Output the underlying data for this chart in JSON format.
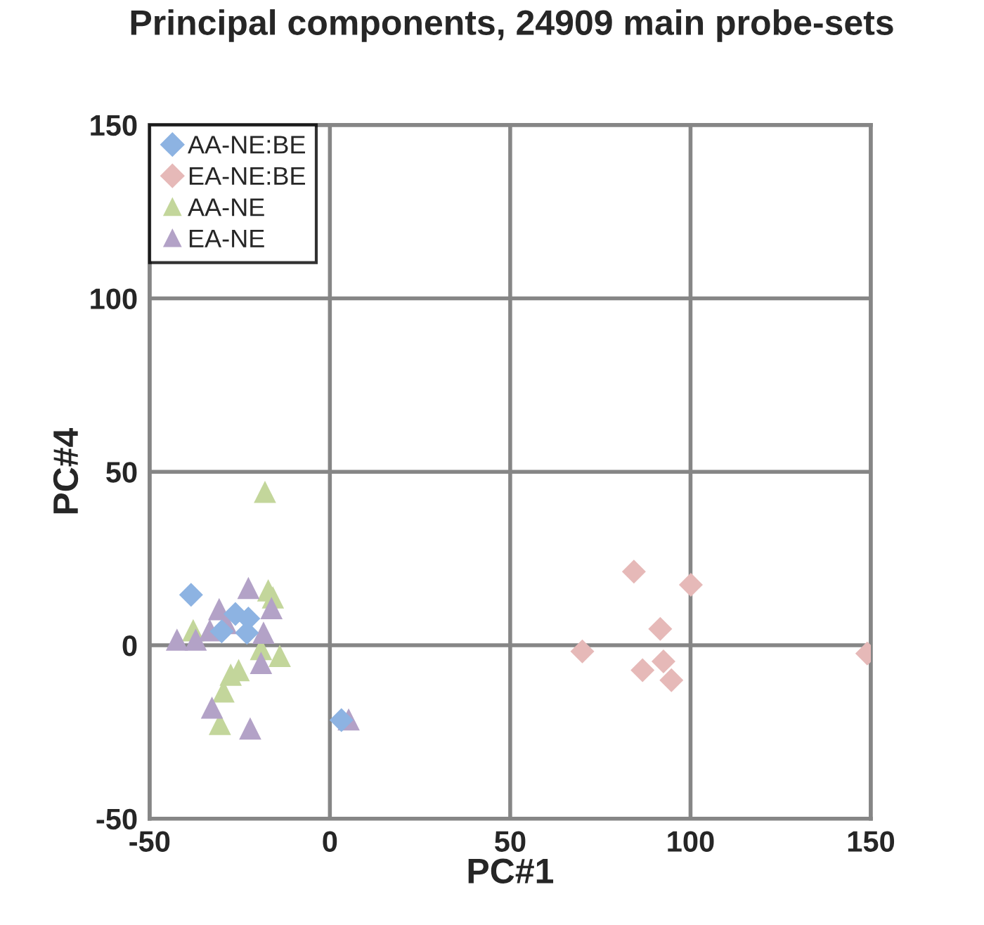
{
  "chart_data": {
    "type": "scatter",
    "title": "Principal components, 24909 main probe-sets",
    "xlabel": "PC#1",
    "ylabel": "PC#4",
    "xlim": [
      -50,
      150
    ],
    "xticks": [
      -50,
      0,
      50,
      100,
      150
    ],
    "ylim": [
      -50,
      150
    ],
    "yticks": [
      -50,
      0,
      50,
      100,
      150
    ],
    "grid": true,
    "legend": "top left",
    "series": [
      {
        "name": "AA-NE:BE",
        "color": "#8db3e2",
        "marker": "diamond",
        "x": [
          -38.5,
          -26.2,
          -22.6,
          -23,
          -30,
          3.2
        ],
        "values": [
          14.5,
          9,
          7.7,
          3.6,
          4,
          -21.6
        ]
      },
      {
        "name": "EA-NE:BE",
        "color": "#e6b9b8",
        "marker": "diamond",
        "x": [
          84.3,
          100.1,
          91.6,
          70,
          92.5,
          86.7,
          94.7,
          149
        ],
        "values": [
          21.2,
          17.4,
          4.7,
          -1.8,
          -4.7,
          -7.2,
          -10.1,
          -2.4
        ]
      },
      {
        "name": "AA-NE",
        "color": "#c3d69b",
        "marker": "triangle",
        "x": [
          -18,
          -17.1,
          -15.8,
          -37.9,
          -19.1,
          -13.9,
          -25.3,
          -27.5,
          -29.5,
          -30.5
        ],
        "values": [
          44.2,
          15.8,
          13.8,
          4.3,
          -1.1,
          -3.1,
          -7.2,
          -8.5,
          -13.3,
          -22.7
        ]
      },
      {
        "name": "EA-NE",
        "color": "#b3a2c7",
        "marker": "triangle",
        "x": [
          -22.6,
          -30.7,
          -16.2,
          -28.8,
          -33.3,
          -18.4,
          -42.4,
          -37.2,
          -19.1,
          -32.7,
          -22.1,
          5.2
        ],
        "values": [
          16.5,
          10.4,
          10.7,
          6.4,
          4.3,
          3.6,
          1.6,
          1.6,
          -5.1,
          -18,
          -24,
          -21.4
        ]
      }
    ]
  }
}
